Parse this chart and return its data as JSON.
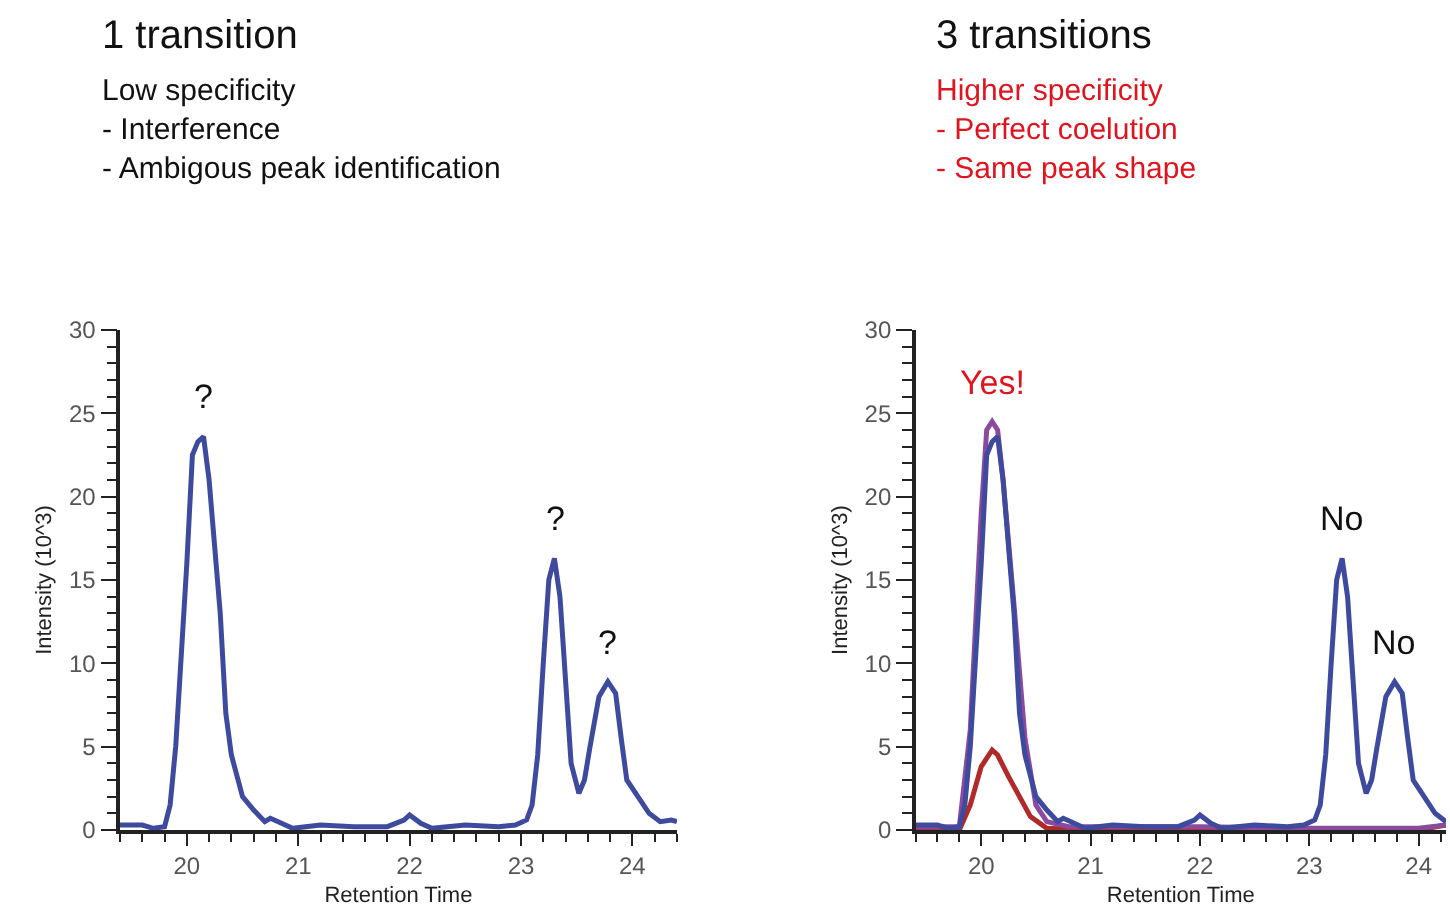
{
  "chart_data": [
    {
      "type": "line",
      "title": "1 transition",
      "subtitle": "Low specificity\n- Interference\n- Ambigous peak identification",
      "xlabel": "Retention Time",
      "ylabel": "Intensity (10^3)",
      "xlim": [
        19.4,
        24.4
      ],
      "xticks": [
        20,
        21,
        22,
        23,
        24
      ],
      "ylim": [
        0,
        30
      ],
      "yticks": [
        0,
        5,
        10,
        15,
        20,
        25,
        30
      ],
      "line_style": "solid",
      "marker": "none",
      "series": [
        {
          "color": "#3d4a9e",
          "x": [
            19.4,
            19.6,
            19.7,
            19.8,
            19.85,
            19.9,
            20.0,
            20.05,
            20.1,
            20.15,
            20.2,
            20.3,
            20.35,
            20.4,
            20.5,
            20.6,
            20.7,
            20.75,
            20.85,
            20.95,
            21.2,
            21.5,
            21.8,
            21.95,
            22.0,
            22.1,
            22.2,
            22.5,
            22.8,
            22.95,
            23.05,
            23.1,
            23.15,
            23.2,
            23.25,
            23.3,
            23.35,
            23.4,
            23.45,
            23.52,
            23.57,
            23.62,
            23.7,
            23.78,
            23.85,
            23.9,
            23.95,
            24.05,
            24.15,
            24.25,
            24.35,
            24.4
          ],
          "values": [
            0.3,
            0.3,
            0.1,
            0.2,
            1.5,
            5,
            16,
            22.5,
            23.3,
            23.6,
            21,
            13,
            7,
            4.5,
            2,
            1.2,
            0.5,
            0.7,
            0.4,
            0.1,
            0.3,
            0.2,
            0.2,
            0.6,
            0.9,
            0.4,
            0.1,
            0.3,
            0.2,
            0.3,
            0.6,
            1.5,
            4.5,
            10,
            15,
            16.3,
            14,
            9,
            4,
            2.2,
            3,
            5,
            8,
            8.9,
            8.2,
            5.5,
            3,
            2,
            1,
            0.5,
            0.6,
            0.5
          ]
        }
      ],
      "annotations": [
        {
          "text": "?",
          "x": 20.15,
          "y": 23.6
        },
        {
          "text": "?",
          "x": 23.3,
          "y": 16.3
        },
        {
          "text": "?",
          "x": 23.78,
          "y": 8.9
        }
      ]
    },
    {
      "type": "line",
      "title": "3 transitions",
      "subtitle": "Higher specificity\n- Perfect coelution\n- Same peak shape",
      "xlabel": "Retention Time",
      "ylabel": "Intensity (10^3)",
      "xlim": [
        19.4,
        24.25
      ],
      "xticks": [
        20,
        21,
        22,
        23,
        24
      ],
      "ylim": [
        0,
        30
      ],
      "yticks": [
        0,
        5,
        10,
        15,
        20,
        25,
        30
      ],
      "line_style": "solid",
      "marker": "none",
      "series": [
        {
          "color": "#b02a2a",
          "x": [
            19.4,
            19.8,
            19.9,
            20.0,
            20.1,
            20.15,
            20.25,
            20.35,
            20.45,
            20.6,
            21.0,
            22.0,
            23.0,
            24.0,
            24.25
          ],
          "values": [
            0,
            0,
            1.5,
            3.8,
            4.8,
            4.5,
            3.2,
            2,
            0.8,
            0.1,
            0,
            0,
            0,
            0,
            0.3
          ]
        },
        {
          "color": "#8a4a9e",
          "x": [
            19.4,
            19.8,
            19.9,
            20.0,
            20.05,
            20.1,
            20.15,
            20.2,
            20.3,
            20.4,
            20.5,
            20.6,
            20.8,
            22.0,
            23.0,
            24.0,
            24.25
          ],
          "values": [
            0.2,
            0.2,
            6,
            19,
            24,
            24.5,
            24,
            21,
            13.5,
            5.5,
            1.5,
            0.5,
            0.2,
            0.2,
            0.1,
            0.1,
            0.3
          ]
        },
        {
          "color": "#3d4a9e",
          "x": [
            19.4,
            19.6,
            19.7,
            19.8,
            19.85,
            19.9,
            20.0,
            20.05,
            20.1,
            20.15,
            20.2,
            20.3,
            20.35,
            20.4,
            20.5,
            20.6,
            20.7,
            20.75,
            20.85,
            20.95,
            21.2,
            21.5,
            21.8,
            21.95,
            22.0,
            22.1,
            22.2,
            22.5,
            22.8,
            22.95,
            23.05,
            23.1,
            23.15,
            23.2,
            23.25,
            23.3,
            23.35,
            23.4,
            23.45,
            23.52,
            23.57,
            23.62,
            23.7,
            23.78,
            23.85,
            23.9,
            23.95,
            24.05,
            24.15,
            24.25
          ],
          "values": [
            0.3,
            0.3,
            0.1,
            0.2,
            1.5,
            5,
            16,
            22.5,
            23.3,
            23.6,
            21,
            13,
            7,
            4.5,
            2,
            1.2,
            0.5,
            0.7,
            0.4,
            0.1,
            0.3,
            0.2,
            0.2,
            0.6,
            0.9,
            0.4,
            0.1,
            0.3,
            0.2,
            0.3,
            0.6,
            1.5,
            4.5,
            10,
            15,
            16.3,
            14,
            9,
            4,
            2.2,
            3,
            5,
            8,
            8.9,
            8.2,
            5.5,
            3,
            2,
            1,
            0.5
          ]
        }
      ],
      "annotations": [
        {
          "text": "Yes!",
          "x": 20.1,
          "y": 24.5
        },
        {
          "text": "No",
          "x": 23.3,
          "y": 16.3
        },
        {
          "text": "No",
          "x": 23.78,
          "y": 8.9
        }
      ]
    }
  ]
}
